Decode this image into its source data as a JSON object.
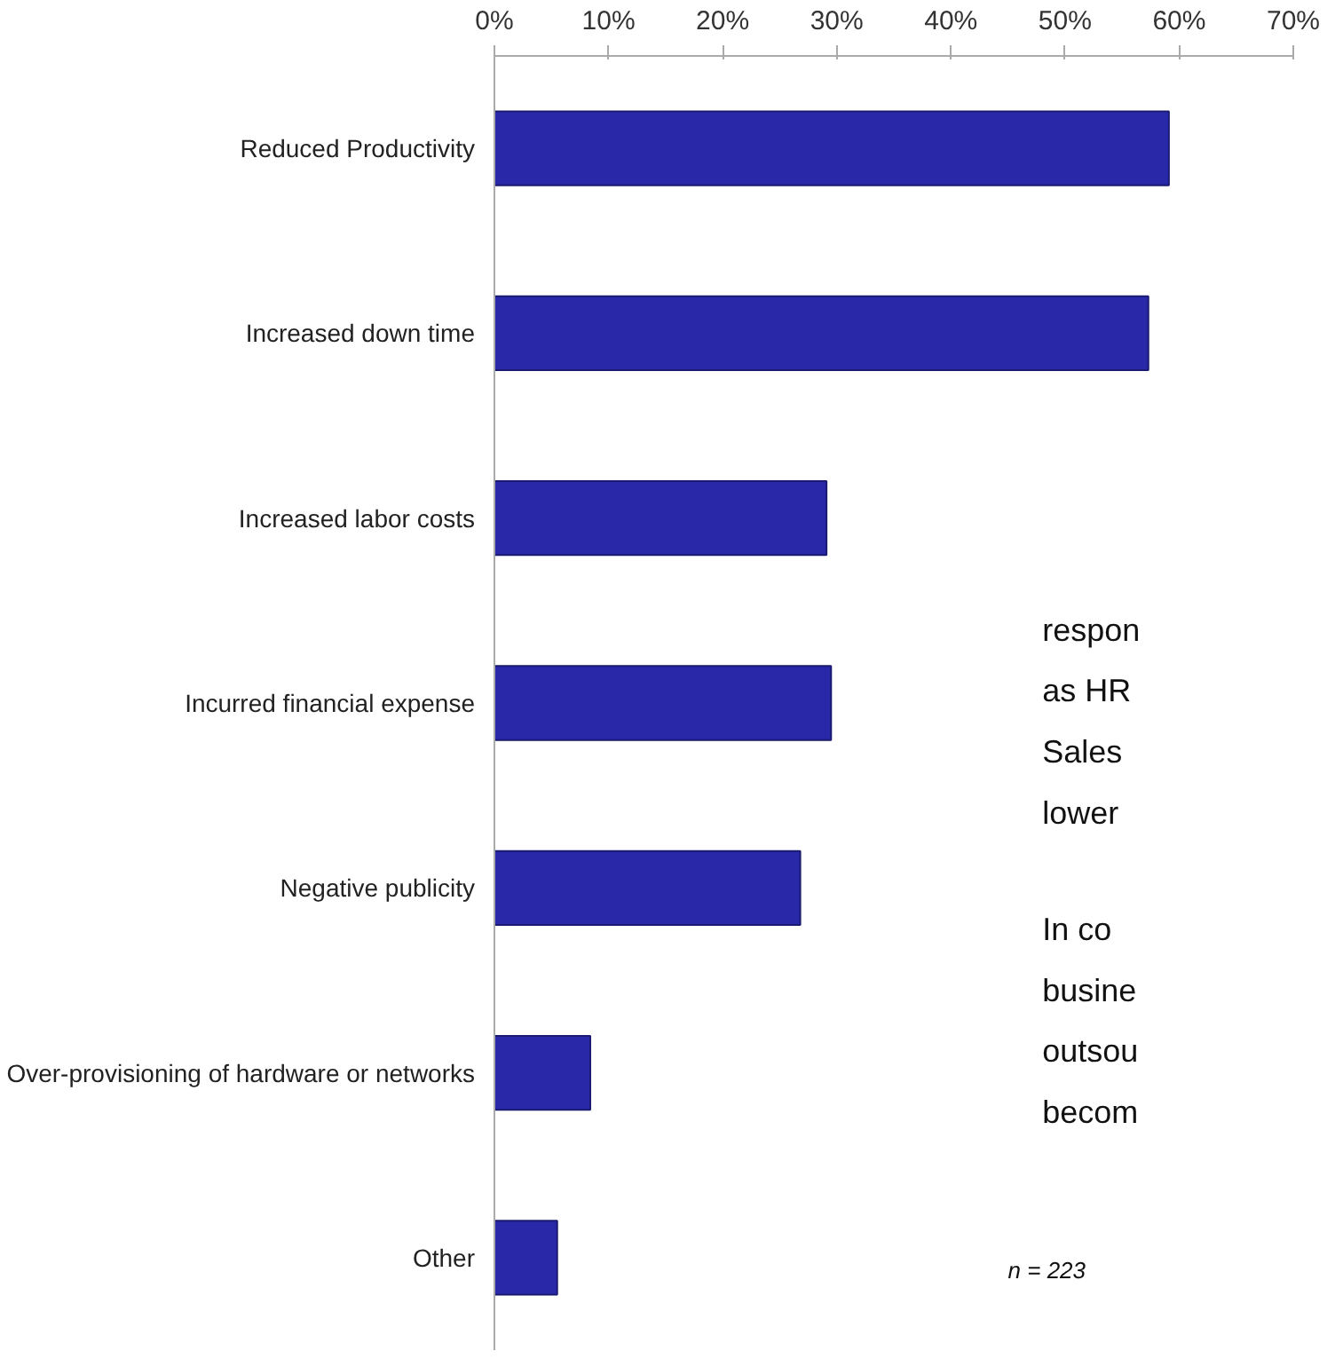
{
  "chart_data": {
    "type": "bar",
    "orientation": "horizontal",
    "categories": [
      "Reduced Productivity",
      "Increased down time",
      "Increased labor costs",
      "Incurred financial expense",
      "Negative publicity",
      "Over-provisioning of hardware or networks",
      "Other"
    ],
    "values": [
      59.1,
      57.3,
      29.1,
      29.5,
      26.8,
      8.4,
      5.5
    ],
    "color": "#2828a8",
    "xlim": [
      0,
      70
    ],
    "xticks": [
      {
        "value": 0,
        "label": "0%"
      },
      {
        "value": 10,
        "label": "10%"
      },
      {
        "value": 20,
        "label": "20%"
      },
      {
        "value": 30,
        "label": "30%"
      },
      {
        "value": 40,
        "label": "40%"
      },
      {
        "value": 50,
        "label": "50%"
      },
      {
        "value": 60,
        "label": "60%"
      },
      {
        "value": 70,
        "label": "70%"
      }
    ],
    "grid": false,
    "annotations": [
      "respon",
      "as HR",
      "Sales",
      "lower",
      "In co",
      "busine",
      "outsou",
      "becom",
      "n = 223"
    ]
  }
}
